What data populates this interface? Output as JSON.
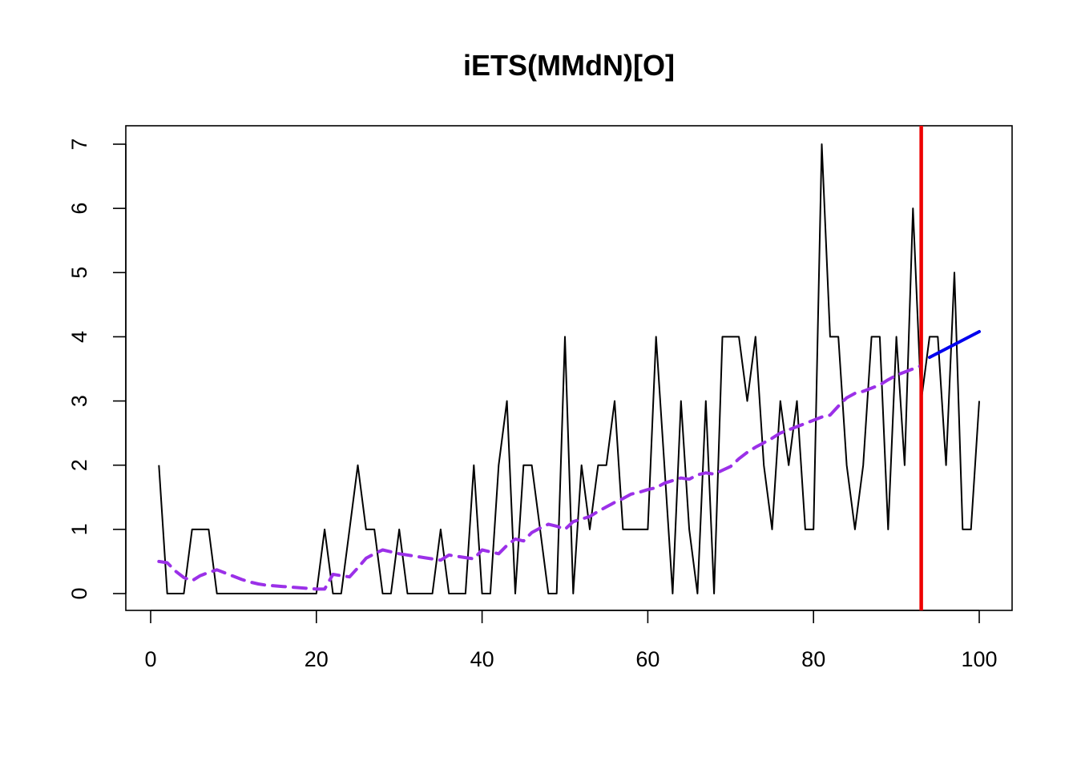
{
  "chart_data": {
    "type": "line",
    "title": "iETS(MMdN)[O]",
    "xlabel": "",
    "ylabel": "",
    "xlim": [
      0,
      100
    ],
    "ylim": [
      0,
      7
    ],
    "xticks": [
      0,
      20,
      40,
      60,
      80,
      100
    ],
    "yticks": [
      0,
      1,
      2,
      3,
      4,
      5,
      6,
      7
    ],
    "grid": false,
    "legend": "none",
    "holdout_start": 93,
    "series": [
      {
        "role": "actuals",
        "color": "#000000",
        "style": "solid",
        "x": [
          1,
          2,
          3,
          4,
          5,
          6,
          7,
          8,
          9,
          10,
          11,
          12,
          13,
          14,
          15,
          16,
          17,
          18,
          19,
          20,
          21,
          22,
          23,
          24,
          25,
          26,
          27,
          28,
          29,
          30,
          31,
          32,
          33,
          34,
          35,
          36,
          37,
          38,
          39,
          40,
          41,
          42,
          43,
          44,
          45,
          46,
          47,
          48,
          49,
          50,
          51,
          52,
          53,
          54,
          55,
          56,
          57,
          58,
          59,
          60,
          61,
          62,
          63,
          64,
          65,
          66,
          67,
          68,
          69,
          70,
          71,
          72,
          73,
          74,
          75,
          76,
          77,
          78,
          79,
          80,
          81,
          82,
          83,
          84,
          85,
          86,
          87,
          88,
          89,
          90,
          91,
          92,
          93,
          94,
          95,
          96,
          97,
          98,
          99,
          100
        ],
        "y": [
          2,
          0,
          0,
          0,
          1,
          1,
          1,
          0,
          0,
          0,
          0,
          0,
          0,
          0,
          0,
          0,
          0,
          0,
          0,
          0,
          1,
          0,
          0,
          1,
          2,
          1,
          1,
          0,
          0,
          1,
          0,
          0,
          0,
          0,
          1,
          0,
          0,
          0,
          2,
          0,
          0,
          2,
          3,
          0,
          2,
          2,
          1,
          0,
          0,
          4,
          0,
          2,
          1,
          2,
          2,
          3,
          1,
          1,
          1,
          1,
          4,
          2,
          0,
          3,
          1,
          0,
          3,
          0,
          4,
          4,
          4,
          3,
          4,
          2,
          1,
          3,
          2,
          3,
          1,
          1,
          7,
          4,
          4,
          2,
          1,
          2,
          4,
          4,
          1,
          4,
          2,
          6,
          3,
          4,
          4,
          2,
          5,
          1,
          1,
          3
        ]
      },
      {
        "role": "fitted",
        "color": "#9b30e8",
        "style": "dashed",
        "x": [
          1,
          2,
          3,
          4,
          5,
          6,
          7,
          8,
          9,
          10,
          11,
          12,
          13,
          14,
          15,
          16,
          17,
          18,
          19,
          20,
          21,
          22,
          23,
          24,
          25,
          26,
          27,
          28,
          29,
          30,
          31,
          32,
          33,
          34,
          35,
          36,
          37,
          38,
          39,
          40,
          41,
          42,
          43,
          44,
          45,
          46,
          47,
          48,
          49,
          50,
          51,
          52,
          53,
          54,
          55,
          56,
          57,
          58,
          59,
          60,
          61,
          62,
          63,
          64,
          65,
          66,
          67,
          68,
          69,
          70,
          71,
          72,
          73,
          74,
          75,
          76,
          77,
          78,
          79,
          80,
          81,
          82,
          83,
          84,
          85,
          86,
          87,
          88,
          89,
          90,
          91,
          92,
          93
        ],
        "y": [
          0.5,
          0.48,
          0.35,
          0.25,
          0.2,
          0.28,
          0.33,
          0.37,
          0.32,
          0.27,
          0.22,
          0.18,
          0.15,
          0.13,
          0.12,
          0.11,
          0.1,
          0.09,
          0.08,
          0.07,
          0.07,
          0.3,
          0.28,
          0.26,
          0.4,
          0.55,
          0.62,
          0.68,
          0.65,
          0.62,
          0.6,
          0.58,
          0.56,
          0.54,
          0.52,
          0.6,
          0.58,
          0.56,
          0.54,
          0.68,
          0.65,
          0.62,
          0.75,
          0.85,
          0.82,
          0.95,
          1.02,
          1.08,
          1.05,
          1.0,
          1.12,
          1.16,
          1.2,
          1.28,
          1.35,
          1.42,
          1.48,
          1.55,
          1.58,
          1.62,
          1.65,
          1.72,
          1.76,
          1.8,
          1.78,
          1.85,
          1.88,
          1.86,
          1.92,
          1.98,
          2.1,
          2.2,
          2.28,
          2.35,
          2.42,
          2.5,
          2.55,
          2.6,
          2.65,
          2.7,
          2.75,
          2.78,
          2.92,
          3.05,
          3.12,
          3.15,
          3.2,
          3.25,
          3.33,
          3.4,
          3.45,
          3.5,
          3.55
        ]
      },
      {
        "role": "forecast",
        "color": "#0000ee",
        "style": "solid",
        "x": [
          94,
          100
        ],
        "y": [
          3.68,
          4.08
        ]
      }
    ]
  }
}
